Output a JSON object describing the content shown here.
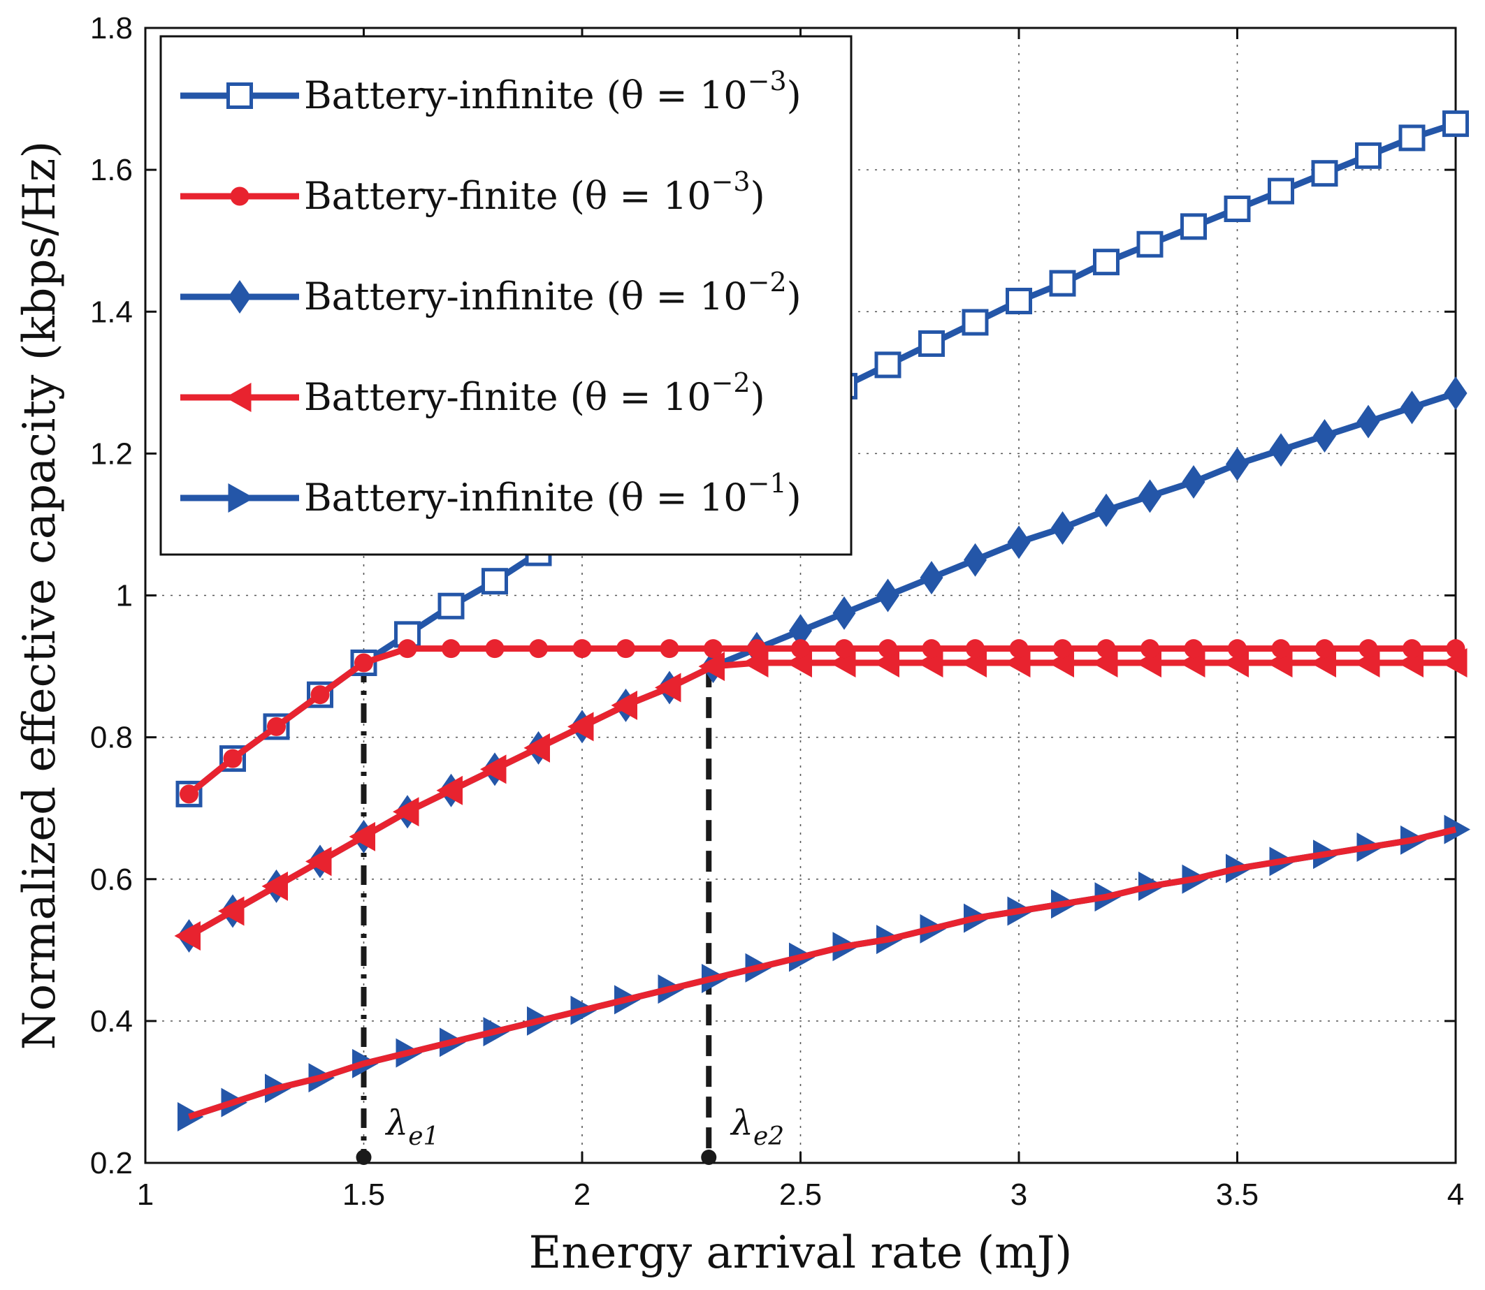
{
  "chart_data": {
    "type": "line",
    "xlabel": "Energy arrival rate (mJ)",
    "ylabel": "Normalized effective capacity (kbps/Hz)",
    "xlim": [
      1,
      4
    ],
    "ylim": [
      0.2,
      1.8
    ],
    "xticks": [
      1,
      1.5,
      2,
      2.5,
      3,
      3.5,
      4
    ],
    "xtick_labels": [
      "1",
      "1.5",
      "2",
      "2.5",
      "3",
      "3.5",
      "4"
    ],
    "yticks": [
      0.2,
      0.4,
      0.6,
      0.8,
      1.0,
      1.2,
      1.4,
      1.6,
      1.8
    ],
    "ytick_labels": [
      "0.2",
      "0.4",
      "0.6",
      "0.8",
      "1",
      "1.2",
      "1.4",
      "1.6",
      "1.8"
    ],
    "grid": true,
    "legend_position": "top-left",
    "colors": {
      "blue": "#2456a8",
      "red": "#e8232f",
      "annotation": "#1a1a1a"
    },
    "x": [
      1.1,
      1.2,
      1.3,
      1.4,
      1.5,
      1.6,
      1.7,
      1.8,
      1.9,
      2.0,
      2.1,
      2.2,
      2.3,
      2.4,
      2.5,
      2.6,
      2.7,
      2.8,
      2.9,
      3.0,
      3.1,
      3.2,
      3.3,
      3.4,
      3.5,
      3.6,
      3.7,
      3.8,
      3.9,
      4.0
    ],
    "series": [
      {
        "name": "Battery-infinite (θ = 10⁻³)",
        "legend": {
          "base": "Battery-infinite (θ = 10",
          "sup": "−3",
          "close": ")"
        },
        "color": "#2456a8",
        "marker": "square",
        "values": [
          0.72,
          0.77,
          0.815,
          0.86,
          0.905,
          0.945,
          0.985,
          1.02,
          1.06,
          1.095,
          1.13,
          1.165,
          1.2,
          1.235,
          1.265,
          1.295,
          1.325,
          1.355,
          1.385,
          1.415,
          1.44,
          1.47,
          1.495,
          1.52,
          1.545,
          1.57,
          1.595,
          1.62,
          1.645,
          1.665
        ]
      },
      {
        "name": "Battery-finite (θ = 10⁻³)",
        "legend": {
          "base": "Battery-finite (θ = 10",
          "sup": "−3",
          "close": ")"
        },
        "color": "#e8232f",
        "marker": "circle",
        "values": [
          0.72,
          0.77,
          0.815,
          0.86,
          0.905,
          0.925,
          0.925,
          0.925,
          0.925,
          0.925,
          0.925,
          0.925,
          0.925,
          0.925,
          0.925,
          0.925,
          0.925,
          0.925,
          0.925,
          0.925,
          0.925,
          0.925,
          0.925,
          0.925,
          0.925,
          0.925,
          0.925,
          0.925,
          0.925,
          0.925
        ]
      },
      {
        "name": "Battery-infinite (θ = 10⁻²)",
        "legend": {
          "base": "Battery-infinite (θ = 10",
          "sup": "−2",
          "close": ")"
        },
        "color": "#2456a8",
        "marker": "diamond",
        "values": [
          0.52,
          0.555,
          0.59,
          0.625,
          0.66,
          0.695,
          0.725,
          0.755,
          0.785,
          0.815,
          0.845,
          0.87,
          0.9,
          0.925,
          0.95,
          0.975,
          1.0,
          1.025,
          1.05,
          1.075,
          1.095,
          1.12,
          1.14,
          1.16,
          1.185,
          1.205,
          1.225,
          1.245,
          1.265,
          1.285
        ]
      },
      {
        "name": "Battery-finite (θ = 10⁻²)",
        "legend": {
          "base": "Battery-finite (θ = 10",
          "sup": "−2",
          "close": ")"
        },
        "color": "#e8232f",
        "marker": "triangle-left",
        "values": [
          0.52,
          0.555,
          0.59,
          0.625,
          0.66,
          0.695,
          0.725,
          0.755,
          0.785,
          0.815,
          0.845,
          0.87,
          0.9,
          0.905,
          0.905,
          0.905,
          0.905,
          0.905,
          0.905,
          0.905,
          0.905,
          0.905,
          0.905,
          0.905,
          0.905,
          0.905,
          0.905,
          0.905,
          0.905,
          0.905
        ]
      },
      {
        "name": "Battery-infinite (θ = 10⁻¹)",
        "legend": {
          "base": "Battery-infinite (θ = 10",
          "sup": "−1",
          "close": ")"
        },
        "color": "#2456a8",
        "marker": "triangle-right",
        "values": [
          0.265,
          0.285,
          0.305,
          0.32,
          0.34,
          0.355,
          0.37,
          0.385,
          0.4,
          0.415,
          0.43,
          0.445,
          0.46,
          0.475,
          0.49,
          0.505,
          0.515,
          0.53,
          0.545,
          0.555,
          0.565,
          0.575,
          0.59,
          0.6,
          0.615,
          0.625,
          0.635,
          0.645,
          0.655,
          0.67
        ]
      }
    ],
    "overlay_line": {
      "description_color": "#e8232f",
      "values": [
        0.265,
        0.285,
        0.305,
        0.32,
        0.34,
        0.355,
        0.37,
        0.385,
        0.4,
        0.415,
        0.43,
        0.445,
        0.46,
        0.475,
        0.49,
        0.505,
        0.515,
        0.53,
        0.545,
        0.555,
        0.565,
        0.575,
        0.59,
        0.6,
        0.615,
        0.625,
        0.635,
        0.645,
        0.655,
        0.67
      ]
    },
    "annotations": [
      {
        "label": "λ",
        "sub": "e1",
        "x": 1.5,
        "y_top": 0.905,
        "style": "dash-dot"
      },
      {
        "label": "λ",
        "sub": "e2",
        "x": 2.29,
        "y_top": 0.9,
        "style": "dashed"
      }
    ]
  }
}
